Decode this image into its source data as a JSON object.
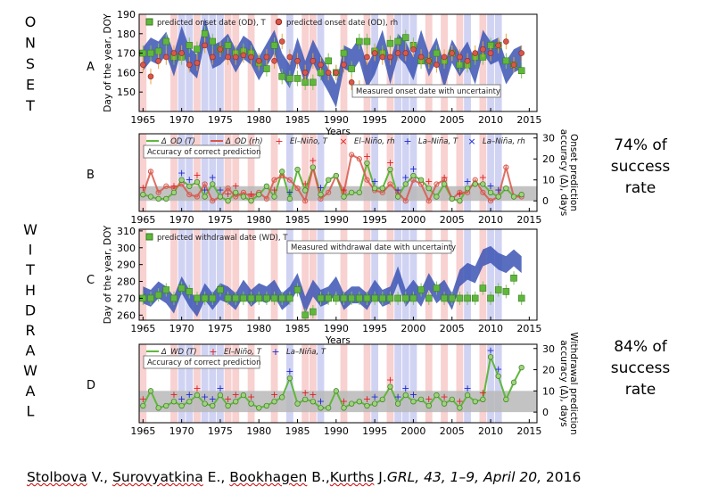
{
  "labels": {
    "onset_letters": [
      "O",
      "N",
      "S",
      "E",
      "T"
    ],
    "withdrawal_letters": [
      "W",
      "I",
      "T",
      "H",
      "D",
      "R",
      "A",
      "W",
      "A",
      "L"
    ],
    "onset_rate_lines": [
      "74% of",
      "success",
      "rate"
    ],
    "withdrawal_rate_lines": [
      "84% of",
      "success",
      "rate"
    ]
  },
  "citation": {
    "author1": "Stolbova",
    "sep1": " V., ",
    "author2": "Surovyatkina",
    "sep2": " E., ",
    "author3": "Bookhagen",
    "sep3": " B.,",
    "author4": "Kurths",
    "sep4": " J.",
    "journal": "GRL, 43, 1–9, April 20,",
    "year": " 2016"
  },
  "colors": {
    "band": "#3c55b4",
    "green": "#5fb83c",
    "red": "#d9574a",
    "elnino": "#f5c2c2",
    "lanina": "#c6c8f0",
    "gray": "#b8b8b8",
    "bars": "#e8a33a"
  },
  "chart_data": [
    {
      "panel": "A",
      "type": "line",
      "xlabel": "Years",
      "ylabel": "Day of the year, DOY",
      "xticks": [
        1965,
        1970,
        1975,
        1980,
        1985,
        1990,
        1995,
        2000,
        2005,
        2010,
        2015
      ],
      "yticks": [
        150,
        160,
        170,
        180,
        190
      ],
      "xlim": [
        1964.5,
        2016
      ],
      "ylim": [
        140,
        190
      ],
      "legend": [
        "predicted onset date (OD), T",
        "predicted onset date (OD), rh"
      ],
      "annotation": "Measured onset date with uncertainty",
      "el_nino_years": [
        1965,
        1969,
        1972,
        1976,
        1977,
        1979,
        1982,
        1986,
        1987,
        1991,
        1994,
        1997,
        2002,
        2004,
        2006,
        2009
      ],
      "la_nina_years": [
        1970,
        1971,
        1973,
        1974,
        1975,
        1984,
        1988,
        1995,
        1998,
        1999,
        2000,
        2007,
        2010,
        2011
      ],
      "years": [
        1965,
        1966,
        1967,
        1968,
        1969,
        1970,
        1971,
        1972,
        1973,
        1974,
        1975,
        1976,
        1977,
        1978,
        1979,
        1980,
        1981,
        1982,
        1983,
        1984,
        1985,
        1986,
        1987,
        1988,
        1989,
        1990,
        1991,
        1992,
        1993,
        1994,
        1995,
        1996,
        1997,
        1998,
        1999,
        2000,
        2001,
        2002,
        2003,
        2004,
        2005,
        2006,
        2007,
        2008,
        2009,
        2010,
        2011,
        2012,
        2013,
        2014
      ],
      "measured_onset": [
        167,
        172,
        170,
        175,
        164,
        178,
        167,
        163,
        182,
        168,
        170,
        174,
        166,
        173,
        170,
        162,
        169,
        176,
        164,
        158,
        172,
        160,
        171,
        163,
        156,
        148,
        168,
        166,
        172,
        158,
        165,
        176,
        160,
        174,
        170,
        162,
        176,
        164,
        172,
        158,
        171,
        164,
        170,
        160,
        176,
        170,
        172,
        160,
        166,
        168
      ],
      "predicted_T": [
        170,
        170,
        171,
        176,
        168,
        168,
        174,
        172,
        180,
        176,
        172,
        174,
        170,
        171,
        170,
        165,
        162,
        174,
        158,
        157,
        157,
        155,
        155,
        160,
        166,
        160,
        170,
        162,
        176,
        176,
        171,
        170,
        175,
        176,
        178,
        174,
        166,
        166,
        170,
        166,
        170,
        164,
        164,
        168,
        168,
        174,
        174,
        166,
        164,
        161
      ],
      "predicted_rh": [
        164,
        158,
        166,
        168,
        170,
        170,
        164,
        165,
        174,
        168,
        172,
        168,
        168,
        169,
        168,
        166,
        168,
        166,
        176,
        168,
        166,
        160,
        166,
        164,
        160,
        160,
        164,
        155,
        152,
        168,
        170,
        168,
        168,
        170,
        170,
        172,
        168,
        166,
        164,
        168,
        170,
        168,
        166,
        170,
        172,
        170,
        174,
        176,
        164,
        170
      ]
    },
    {
      "panel": "B",
      "type": "line",
      "ylabel": "Onset prediction accuracy (Δ), days",
      "yticks": [
        0,
        10,
        20,
        30
      ],
      "ylim": [
        -5,
        32
      ],
      "legend": [
        "Δ_OD (T)",
        "Δ_OD (rh)",
        "El–Niño, T",
        "El–Niño, rh",
        "La–Niña, T",
        "La–Niña, rh"
      ],
      "annotation": "Accuracy of correct prediction",
      "accuracy_band": [
        0,
        7
      ],
      "years": [
        1965,
        1966,
        1967,
        1968,
        1969,
        1970,
        1971,
        1972,
        1973,
        1974,
        1975,
        1976,
        1977,
        1978,
        1979,
        1980,
        1981,
        1982,
        1983,
        1984,
        1985,
        1986,
        1987,
        1988,
        1989,
        1990,
        1991,
        1992,
        1993,
        1994,
        1995,
        1996,
        1997,
        1998,
        1999,
        2000,
        2001,
        2002,
        2003,
        2004,
        2005,
        2006,
        2007,
        2008,
        2009,
        2010,
        2011,
        2012,
        2013,
        2014
      ],
      "delta_T": [
        3,
        2,
        1,
        1,
        4,
        10,
        7,
        9,
        2,
        8,
        2,
        0,
        4,
        2,
        0,
        3,
        7,
        2,
        14,
        1,
        15,
        5,
        16,
        3,
        10,
        12,
        2,
        4,
        4,
        18,
        6,
        6,
        15,
        2,
        8,
        12,
        10,
        6,
        2,
        8,
        1,
        0,
        6,
        8,
        8,
        4,
        2,
        6,
        2,
        3
      ],
      "delta_rh": [
        3,
        14,
        4,
        7,
        6,
        8,
        3,
        2,
        8,
        0,
        2,
        6,
        2,
        4,
        2,
        4,
        1,
        10,
        12,
        10,
        6,
        0,
        16,
        1,
        4,
        12,
        4,
        22,
        20,
        10,
        5,
        4,
        8,
        4,
        0,
        10,
        8,
        0,
        8,
        10,
        1,
        4,
        4,
        10,
        4,
        0,
        2,
        16,
        2,
        2
      ]
    },
    {
      "panel": "C",
      "type": "line",
      "xlabel": "Years",
      "ylabel": "Day of the year, DOY",
      "xticks": [
        1965,
        1970,
        1975,
        1980,
        1985,
        1990,
        1995,
        2000,
        2005,
        2010,
        2015
      ],
      "yticks": [
        260,
        270,
        280,
        290,
        300,
        310
      ],
      "ylim": [
        257,
        311
      ],
      "legend": [
        "predicted withdrawal date (WD), T"
      ],
      "annotation": "Measured withdrawal date with uncertainty",
      "years": [
        1965,
        1966,
        1967,
        1968,
        1969,
        1970,
        1971,
        1972,
        1973,
        1974,
        1975,
        1976,
        1977,
        1978,
        1979,
        1980,
        1981,
        1982,
        1983,
        1984,
        1985,
        1986,
        1987,
        1988,
        1989,
        1990,
        1991,
        1992,
        1993,
        1994,
        1995,
        1996,
        1997,
        1998,
        1999,
        2000,
        2001,
        2002,
        2003,
        2004,
        2005,
        2006,
        2007,
        2008,
        2009,
        2010,
        2011,
        2012,
        2013,
        2014
      ],
      "measured_withdrawal": [
        272,
        270,
        275,
        272,
        266,
        278,
        270,
        264,
        274,
        268,
        274,
        272,
        268,
        276,
        270,
        274,
        272,
        276,
        268,
        272,
        280,
        266,
        276,
        270,
        272,
        278,
        268,
        272,
        272,
        268,
        276,
        270,
        272,
        284,
        270,
        276,
        270,
        280,
        272,
        276,
        268,
        282,
        286,
        284,
        294,
        296,
        292,
        290,
        294,
        290
      ],
      "predicted_T": [
        270,
        270,
        272,
        275,
        270,
        276,
        274,
        270,
        270,
        270,
        275,
        270,
        270,
        270,
        270,
        270,
        270,
        270,
        270,
        270,
        275,
        260,
        262,
        270,
        270,
        270,
        270,
        270,
        270,
        270,
        270,
        270,
        270,
        270,
        270,
        270,
        275,
        270,
        276,
        270,
        270,
        270,
        270,
        270,
        276,
        270,
        275,
        274,
        282,
        270
      ]
    },
    {
      "panel": "D",
      "type": "line",
      "ylabel": "Withdrawal prediction accuracy (Δ), days",
      "yticks": [
        0,
        10,
        20,
        30
      ],
      "ylim": [
        -5,
        32
      ],
      "legend": [
        "Δ_WD (T)",
        "El–Niño, T",
        "La–Niña, T"
      ],
      "annotation": "Accuracy of correct prediction",
      "accuracy_band": [
        0,
        10
      ],
      "years": [
        1965,
        1966,
        1967,
        1968,
        1969,
        1970,
        1971,
        1972,
        1973,
        1974,
        1975,
        1976,
        1977,
        1978,
        1979,
        1980,
        1981,
        1982,
        1983,
        1984,
        1985,
        1986,
        1987,
        1988,
        1989,
        1990,
        1991,
        1992,
        1993,
        1994,
        1995,
        1996,
        1997,
        1998,
        1999,
        2000,
        2001,
        2002,
        2003,
        2004,
        2005,
        2006,
        2007,
        2008,
        2009,
        2010,
        2011,
        2012,
        2013,
        2014
      ],
      "delta_T": [
        3,
        10,
        2,
        3,
        5,
        3,
        5,
        8,
        4,
        3,
        8,
        3,
        5,
        8,
        4,
        2,
        3,
        5,
        7,
        16,
        4,
        6,
        5,
        2,
        2,
        10,
        2,
        4,
        5,
        3,
        4,
        6,
        12,
        4,
        8,
        5,
        6,
        3,
        8,
        4,
        6,
        2,
        8,
        5,
        6,
        26,
        17,
        6,
        14,
        21
      ]
    }
  ]
}
